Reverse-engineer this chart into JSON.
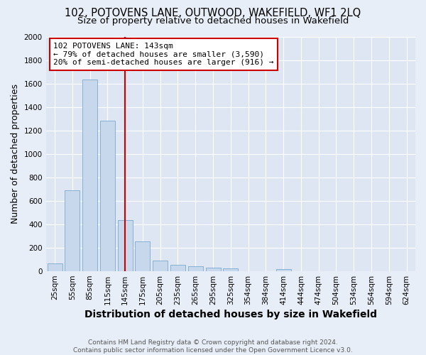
{
  "title": "102, POTOVENS LANE, OUTWOOD, WAKEFIELD, WF1 2LQ",
  "subtitle": "Size of property relative to detached houses in Wakefield",
  "xlabel": "Distribution of detached houses by size in Wakefield",
  "ylabel": "Number of detached properties",
  "categories": [
    "25sqm",
    "55sqm",
    "85sqm",
    "115sqm",
    "145sqm",
    "175sqm",
    "205sqm",
    "235sqm",
    "265sqm",
    "295sqm",
    "325sqm",
    "354sqm",
    "384sqm",
    "414sqm",
    "444sqm",
    "474sqm",
    "504sqm",
    "534sqm",
    "564sqm",
    "594sqm",
    "624sqm"
  ],
  "values": [
    65,
    690,
    1635,
    1285,
    435,
    255,
    90,
    55,
    40,
    30,
    25,
    0,
    0,
    20,
    0,
    0,
    0,
    0,
    0,
    0,
    0
  ],
  "bar_color": "#c8d8ec",
  "bar_edge_color": "#7aaad0",
  "vline_x": 4,
  "vline_color": "#cc0000",
  "annotation_text": "102 POTOVENS LANE: 143sqm\n← 79% of detached houses are smaller (3,590)\n20% of semi-detached houses are larger (916) →",
  "annotation_box_color": "#ffffff",
  "annotation_box_edge": "#cc0000",
  "ylim": [
    0,
    2000
  ],
  "yticks": [
    0,
    200,
    400,
    600,
    800,
    1000,
    1200,
    1400,
    1600,
    1800,
    2000
  ],
  "footer_line1": "Contains HM Land Registry data © Crown copyright and database right 2024.",
  "footer_line2": "Contains public sector information licensed under the Open Government Licence v3.0.",
  "bg_color": "#e8eef7",
  "plot_bg_color": "#dde6f2",
  "title_fontsize": 10.5,
  "subtitle_fontsize": 9.5,
  "axis_label_fontsize": 9,
  "tick_fontsize": 7.5,
  "annotation_fontsize": 8
}
